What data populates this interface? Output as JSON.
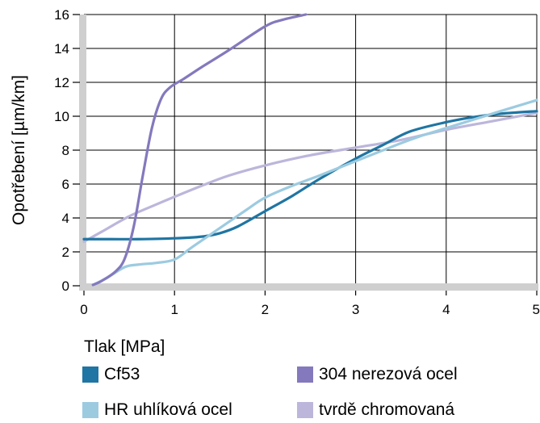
{
  "chart_data": {
    "type": "line",
    "xlabel": "Tlak [MPa]",
    "ylabel": "Opotřebení [µm/km]",
    "xlim": [
      0,
      5
    ],
    "ylim": [
      0,
      16
    ],
    "xticks": [
      "0",
      "1",
      "2",
      "3",
      "4",
      "5"
    ],
    "yticks": [
      "0",
      "2",
      "4",
      "6",
      "8",
      "10",
      "12",
      "14",
      "16"
    ],
    "grid": true,
    "legend_position": "bottom",
    "series": [
      {
        "name": "Cf53",
        "color": "#1f75a3",
        "points": [
          [
            0,
            2.75
          ],
          [
            0.3,
            2.75
          ],
          [
            0.6,
            2.75
          ],
          [
            1.0,
            2.8
          ],
          [
            1.3,
            2.9
          ],
          [
            1.5,
            3.1
          ],
          [
            1.7,
            3.5
          ],
          [
            2.0,
            4.4
          ],
          [
            2.3,
            5.3
          ],
          [
            2.6,
            6.3
          ],
          [
            3.0,
            7.5
          ],
          [
            3.3,
            8.3
          ],
          [
            3.6,
            9.1
          ],
          [
            4.0,
            9.65
          ],
          [
            4.3,
            9.95
          ],
          [
            4.6,
            10.15
          ],
          [
            5.0,
            10.3
          ]
        ]
      },
      {
        "name": "304 nerezová ocel",
        "color": "#8479bd",
        "points": [
          [
            0.1,
            0.05
          ],
          [
            0.2,
            0.3
          ],
          [
            0.35,
            0.85
          ],
          [
            0.45,
            1.6
          ],
          [
            0.55,
            3.5
          ],
          [
            0.65,
            6.5
          ],
          [
            0.75,
            9.3
          ],
          [
            0.85,
            11.0
          ],
          [
            0.95,
            11.7
          ],
          [
            1.1,
            12.2
          ],
          [
            1.3,
            12.9
          ],
          [
            1.6,
            13.9
          ],
          [
            2.0,
            15.3
          ],
          [
            2.2,
            15.7
          ],
          [
            2.45,
            16.0
          ]
        ]
      },
      {
        "name": "HR uhlíková ocel",
        "color": "#9ccbe0",
        "points": [
          [
            0.1,
            0.05
          ],
          [
            0.25,
            0.45
          ],
          [
            0.45,
            1.1
          ],
          [
            0.6,
            1.25
          ],
          [
            0.8,
            1.35
          ],
          [
            1.0,
            1.55
          ],
          [
            1.2,
            2.3
          ],
          [
            1.5,
            3.4
          ],
          [
            1.8,
            4.5
          ],
          [
            2.0,
            5.2
          ],
          [
            2.3,
            5.9
          ],
          [
            2.6,
            6.5
          ],
          [
            3.0,
            7.35
          ],
          [
            3.4,
            8.2
          ],
          [
            3.7,
            8.8
          ],
          [
            4.0,
            9.3
          ],
          [
            4.3,
            9.8
          ],
          [
            4.6,
            10.3
          ],
          [
            5.0,
            10.95
          ]
        ]
      },
      {
        "name": "tvrdě chromovaná",
        "color": "#bcb6db",
        "points": [
          [
            0,
            2.6
          ],
          [
            0.2,
            3.2
          ],
          [
            0.5,
            4.1
          ],
          [
            0.8,
            4.8
          ],
          [
            1.0,
            5.25
          ],
          [
            1.3,
            5.9
          ],
          [
            1.6,
            6.5
          ],
          [
            2.0,
            7.1
          ],
          [
            2.5,
            7.7
          ],
          [
            3.0,
            8.15
          ],
          [
            3.5,
            8.6
          ],
          [
            4.0,
            9.2
          ],
          [
            4.5,
            9.7
          ],
          [
            5.0,
            10.2
          ]
        ]
      }
    ]
  },
  "legend": {
    "items": [
      {
        "label": "Cf53",
        "color": "#1f75a3"
      },
      {
        "label": "304 nerezová ocel",
        "color": "#8479bd"
      },
      {
        "label": "HR uhlíková ocel",
        "color": "#9ccbe0"
      },
      {
        "label": "tvrdě chromovaná",
        "color": "#bcb6db"
      }
    ]
  }
}
